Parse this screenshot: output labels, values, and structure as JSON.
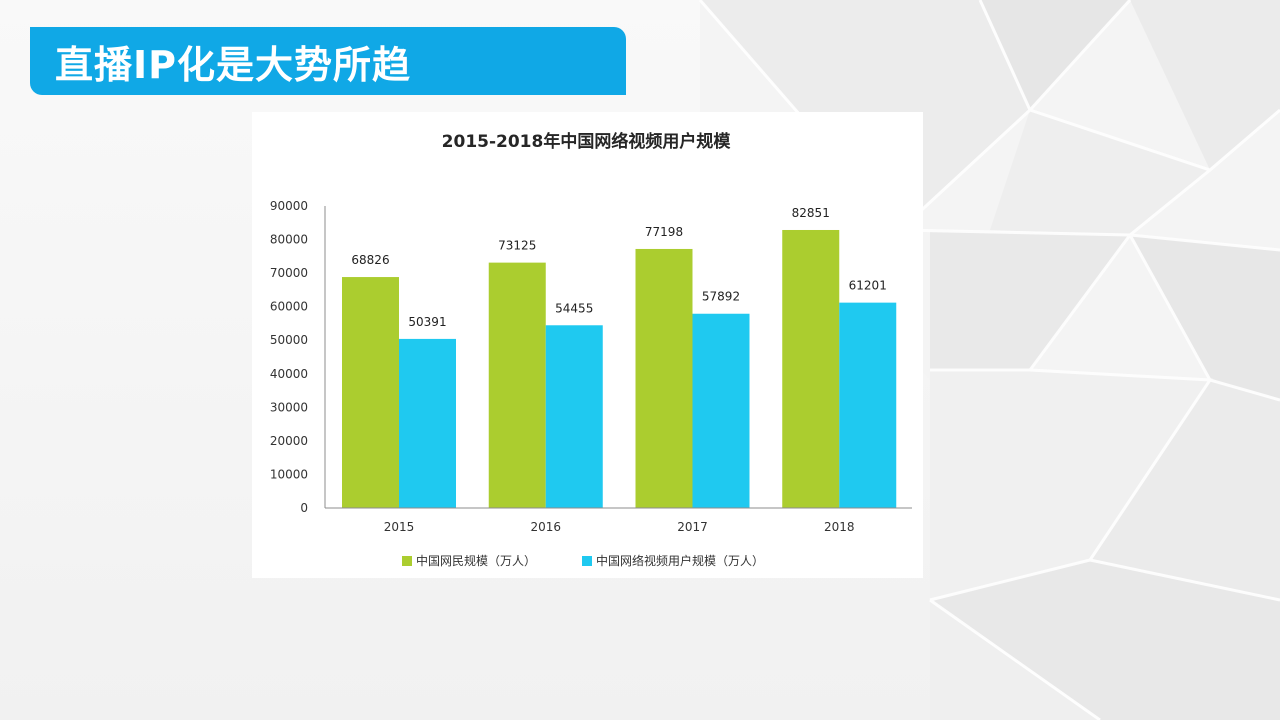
{
  "slide": {
    "title": "直播IP化是大势所趋"
  },
  "colors": {
    "title_bar": "#10a8e6",
    "series_netizens": "#abcd2f",
    "series_video_users": "#1fc9f0"
  },
  "chart_data": {
    "type": "bar",
    "title": "2015-2018年中国网络视频用户规模",
    "xlabel": "",
    "ylabel": "",
    "categories": [
      "2015",
      "2016",
      "2017",
      "2018"
    ],
    "series": [
      {
        "name": "中国网民规模（万人）",
        "values": [
          68826,
          73125,
          77198,
          82851
        ]
      },
      {
        "name": "中国网络视频用户规模（万人）",
        "values": [
          50391,
          54455,
          57892,
          61201
        ]
      }
    ],
    "ylim": [
      0,
      90000
    ],
    "yticks": [
      0,
      10000,
      20000,
      30000,
      40000,
      50000,
      60000,
      70000,
      80000,
      90000
    ],
    "grid": false,
    "data_labels": true,
    "legend_position": "bottom"
  }
}
